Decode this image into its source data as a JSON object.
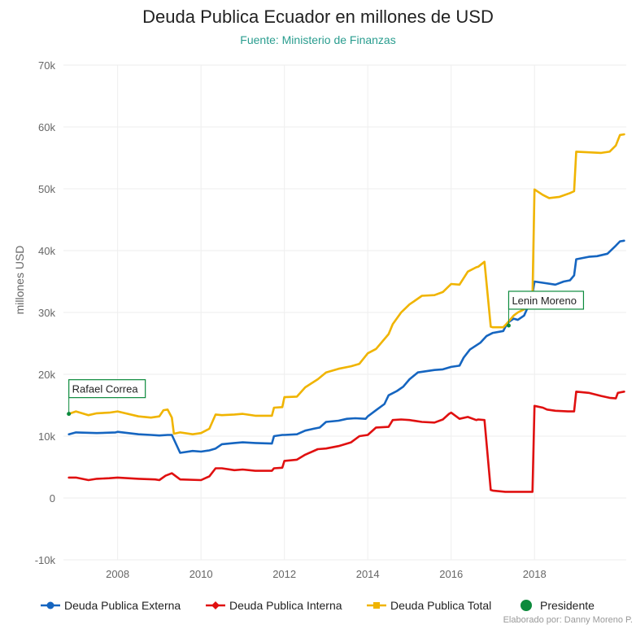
{
  "title": "Deuda Publica Ecuador en millones de USD",
  "subtitle": "Fuente: Ministerio de Finanzas",
  "credit": "Elaborado por: Danny Moreno P.",
  "colors": {
    "externa": "#1565c0",
    "interna": "#e01010",
    "total": "#f0b400",
    "presidente": "#0c8a3c",
    "grid": "#eeeeee",
    "tick": "#666666"
  },
  "chart_data": {
    "type": "line",
    "title": "Deuda Publica Ecuador en millones de USD",
    "subtitle": "Fuente: Ministerio de Finanzas",
    "xlabel": "",
    "ylabel": "millones USD",
    "xlim": [
      2006.7,
      2020.2
    ],
    "ylim": [
      -10000,
      70000
    ],
    "x_ticks": [
      2008,
      2010,
      2012,
      2014,
      2016,
      2018
    ],
    "x_tick_labels": [
      "2008",
      "2010",
      "2012",
      "2014",
      "2016",
      "2018"
    ],
    "y_ticks": [
      -10000,
      0,
      10000,
      20000,
      30000,
      40000,
      50000,
      60000,
      70000
    ],
    "y_tick_labels": [
      "-10k",
      "0",
      "10k",
      "20k",
      "30k",
      "40k",
      "50k",
      "60k",
      "70k"
    ],
    "grid": true,
    "legend_position": "bottom",
    "series": [
      {
        "name": "Deuda Publica Externa",
        "color": "#1565c0",
        "x": [
          2006.83,
          2007.0,
          2007.5,
          2007.95,
          2008.0,
          2008.5,
          2008.8,
          2009.0,
          2009.2,
          2009.3,
          2009.5,
          2009.8,
          2010.0,
          2010.2,
          2010.35,
          2010.5,
          2010.8,
          2011.0,
          2011.3,
          2011.7,
          2011.75,
          2011.95,
          2012.0,
          2012.3,
          2012.5,
          2012.7,
          2012.85,
          2013.0,
          2013.3,
          2013.5,
          2013.7,
          2013.95,
          2014.0,
          2014.2,
          2014.4,
          2014.5,
          2014.7,
          2014.85,
          2015.0,
          2015.2,
          2015.4,
          2015.6,
          2015.8,
          2016.0,
          2016.2,
          2016.3,
          2016.45,
          2016.7,
          2016.85,
          2017.0,
          2017.25,
          2017.35,
          2017.5,
          2017.6,
          2017.75,
          2017.85,
          2017.95,
          2018.0,
          2018.2,
          2018.5,
          2018.7,
          2018.85,
          2018.95,
          2019.0,
          2019.3,
          2019.5,
          2019.75,
          2019.95,
          2020.05,
          2020.15
        ],
        "y": [
          10300,
          10600,
          10500,
          10600,
          10700,
          10300,
          10200,
          10100,
          10200,
          10200,
          7300,
          7600,
          7500,
          7700,
          8000,
          8700,
          8900,
          9000,
          8900,
          8800,
          10000,
          10200,
          10200,
          10300,
          10900,
          11200,
          11400,
          12300,
          12500,
          12800,
          12900,
          12800,
          13200,
          14200,
          15200,
          16600,
          17300,
          18000,
          19200,
          20300,
          20500,
          20700,
          20800,
          21200,
          21400,
          22700,
          24000,
          25100,
          26200,
          26700,
          27000,
          28300,
          29000,
          28800,
          29500,
          31000,
          33000,
          35000,
          34800,
          34500,
          35000,
          35200,
          36000,
          38600,
          39000,
          39100,
          39500,
          40800,
          41500,
          41600
        ]
      },
      {
        "name": "Deuda Publica Interna",
        "color": "#e01010",
        "x": [
          2006.83,
          2007.0,
          2007.3,
          2007.5,
          2007.8,
          2008.0,
          2008.5,
          2008.9,
          2009.0,
          2009.15,
          2009.3,
          2009.5,
          2010.0,
          2010.2,
          2010.35,
          2010.5,
          2010.8,
          2011.0,
          2011.3,
          2011.7,
          2011.75,
          2011.95,
          2012.0,
          2012.3,
          2012.5,
          2012.8,
          2013.0,
          2013.3,
          2013.6,
          2013.8,
          2014.0,
          2014.2,
          2014.5,
          2014.6,
          2014.8,
          2015.0,
          2015.3,
          2015.6,
          2015.8,
          2015.95,
          2016.0,
          2016.2,
          2016.4,
          2016.6,
          2016.65,
          2016.8,
          2016.95,
          2017.0,
          2017.3,
          2017.6,
          2017.75,
          2017.85,
          2017.95,
          2018.0,
          2018.2,
          2018.3,
          2018.5,
          2018.8,
          2018.95,
          2019.0,
          2019.3,
          2019.6,
          2019.8,
          2019.95,
          2020.0,
          2020.15
        ],
        "y": [
          3300,
          3300,
          2900,
          3100,
          3200,
          3300,
          3100,
          3000,
          2900,
          3600,
          4000,
          3000,
          2900,
          3500,
          4800,
          4800,
          4500,
          4600,
          4400,
          4400,
          4800,
          4900,
          6000,
          6200,
          7000,
          7900,
          8000,
          8400,
          9000,
          10000,
          10200,
          11400,
          11500,
          12600,
          12700,
          12600,
          12300,
          12200,
          12700,
          13600,
          13800,
          12800,
          13100,
          12600,
          12700,
          12600,
          1300,
          1200,
          1000,
          1000,
          1000,
          1000,
          1000,
          14900,
          14600,
          14300,
          14100,
          14000,
          14000,
          17200,
          17000,
          16500,
          16200,
          16100,
          17000,
          17200
        ]
      },
      {
        "name": "Deuda Publica Total",
        "color": "#f0b400",
        "x": [
          2006.83,
          2007.0,
          2007.3,
          2007.5,
          2007.8,
          2008.0,
          2008.5,
          2008.8,
          2009.0,
          2009.1,
          2009.2,
          2009.3,
          2009.35,
          2009.5,
          2009.8,
          2010.0,
          2010.2,
          2010.35,
          2010.5,
          2010.8,
          2011.0,
          2011.3,
          2011.7,
          2011.75,
          2011.95,
          2012.0,
          2012.3,
          2012.5,
          2012.8,
          2013.0,
          2013.3,
          2013.6,
          2013.8,
          2014.0,
          2014.2,
          2014.5,
          2014.6,
          2014.8,
          2015.0,
          2015.3,
          2015.6,
          2015.8,
          2016.0,
          2016.2,
          2016.4,
          2016.6,
          2016.65,
          2016.8,
          2016.95,
          2017.0,
          2017.25,
          2017.35,
          2017.5,
          2017.6,
          2017.75,
          2017.85,
          2017.95,
          2018.0,
          2018.2,
          2018.35,
          2018.6,
          2018.85,
          2018.95,
          2019.0,
          2019.3,
          2019.6,
          2019.8,
          2019.95,
          2020.05,
          2020.15
        ],
        "y": [
          13600,
          14000,
          13400,
          13700,
          13800,
          14000,
          13200,
          13000,
          13200,
          14200,
          14300,
          13000,
          10400,
          10600,
          10300,
          10500,
          11200,
          13500,
          13400,
          13500,
          13600,
          13300,
          13300,
          14600,
          14700,
          16300,
          16400,
          17900,
          19200,
          20300,
          20900,
          21300,
          21700,
          23400,
          24100,
          26500,
          28100,
          30000,
          31300,
          32700,
          32800,
          33300,
          34600,
          34500,
          36600,
          37300,
          37400,
          38200,
          27700,
          27600,
          27600,
          28300,
          29500,
          30000,
          30500,
          31000,
          32500,
          49900,
          49000,
          48500,
          48700,
          49300,
          49600,
          56000,
          55900,
          55800,
          56000,
          57000,
          58700,
          58800
        ]
      }
    ],
    "annotations": [
      {
        "label": "Rafael Correa",
        "x": 2006.83,
        "y": 13600
      },
      {
        "label": "Lenin Moreno",
        "x": 2017.38,
        "y": 27900
      }
    ],
    "legend": [
      {
        "label": "Deuda Publica Externa",
        "marker": "circle",
        "color": "#1565c0"
      },
      {
        "label": "Deuda Publica Interna",
        "marker": "diamond",
        "color": "#e01010"
      },
      {
        "label": "Deuda Publica Total",
        "marker": "square",
        "color": "#f0b400"
      },
      {
        "label": "Presidente",
        "marker": "big-circle",
        "color": "#0c8a3c"
      }
    ]
  }
}
